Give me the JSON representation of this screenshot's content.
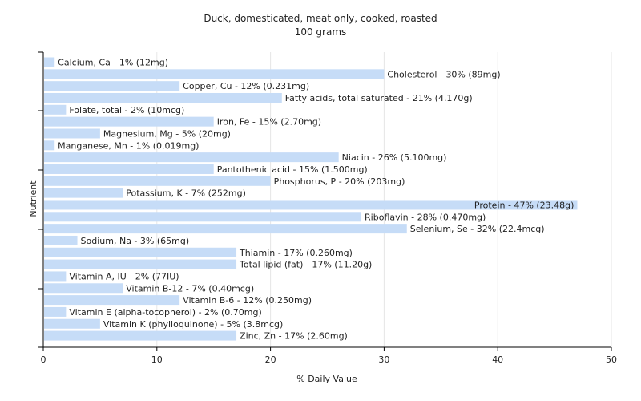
{
  "chart_data": {
    "type": "bar",
    "orientation": "horizontal",
    "title": "Duck, domesticated, meat only, cooked, roasted",
    "subtitle": "100 grams",
    "xlabel": "% Daily Value",
    "ylabel": "Nutrient",
    "xlim": [
      0,
      50
    ],
    "xticks": [
      0,
      10,
      20,
      30,
      40,
      50
    ],
    "grid": true,
    "categories": [
      "Calcium, Ca - 1% (12mg)",
      "Cholesterol - 30% (89mg)",
      "Copper, Cu - 12% (0.231mg)",
      "Fatty acids, total saturated - 21% (4.170g)",
      "Folate, total - 2% (10mcg)",
      "Iron, Fe - 15% (2.70mg)",
      "Magnesium, Mg - 5% (20mg)",
      "Manganese, Mn - 1% (0.019mg)",
      "Niacin - 26% (5.100mg)",
      "Pantothenic acid - 15% (1.500mg)",
      "Phosphorus, P - 20% (203mg)",
      "Potassium, K - 7% (252mg)",
      "Protein - 47% (23.48g)",
      "Riboflavin - 28% (0.470mg)",
      "Selenium, Se - 32% (22.4mcg)",
      "Sodium, Na - 3% (65mg)",
      "Thiamin - 17% (0.260mg)",
      "Total lipid (fat) - 17% (11.20g)",
      "Vitamin A, IU - 2% (77IU)",
      "Vitamin B-12 - 7% (0.40mcg)",
      "Vitamin B-6 - 12% (0.250mg)",
      "Vitamin E (alpha-tocopherol) - 2% (0.70mg)",
      "Vitamin K (phylloquinone) - 5% (3.8mcg)",
      "Zinc, Zn - 17% (2.60mg)"
    ],
    "values": [
      1,
      30,
      12,
      21,
      2,
      15,
      5,
      1,
      26,
      15,
      20,
      7,
      47,
      28,
      32,
      3,
      17,
      17,
      2,
      7,
      12,
      2,
      5,
      17
    ],
    "colors": {
      "bar": "#c6dcf7",
      "grid": "#e6e6e6",
      "axis": "#000000",
      "text": "#222222"
    }
  }
}
